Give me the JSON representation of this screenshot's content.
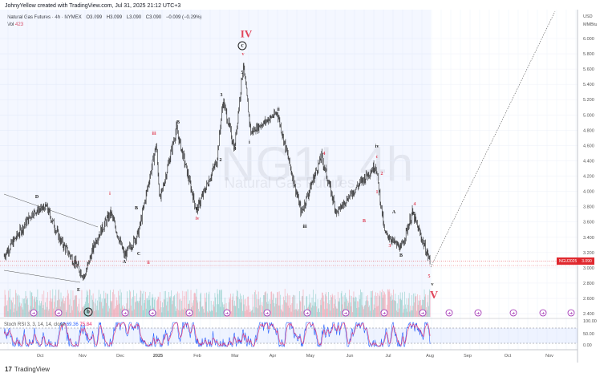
{
  "header": {
    "credit": "JohnyYellow created with TradingView.com, Jul 31, 2025 21:12 UTC+3"
  },
  "symbol": {
    "name": "Natural Gas Futures · 4h · NYMEX",
    "open": "O3.099",
    "high": "H3.099",
    "low": "L3.090",
    "close": "C3.090",
    "change": "−0.009 (−0.29%)",
    "vol_label": "Vol",
    "vol_value": "423"
  },
  "watermark": {
    "ticker": "NG1!, 4h",
    "name": "Natural Gas Futures"
  },
  "axis": {
    "currency": "USD",
    "unit": "MMBtu"
  },
  "price_tag": {
    "symbol": "NGU2025",
    "price": "3.090"
  },
  "stoch": {
    "label": "Stoch RSI 3, 3, 14, 14, close",
    "k": "69.36",
    "d": "75.84",
    "ticks": [
      "100.00",
      "50.00",
      "0.00"
    ]
  },
  "footer": {
    "brand": "TradingView"
  },
  "colors": {
    "up": "#089981",
    "down": "#f23645",
    "wave": "#e0455a",
    "k": "#2962ff",
    "d": "#e91e63"
  },
  "wave_labels": [
    {
      "t": "IV",
      "c": "red big"
    },
    {
      "t": "c",
      "c": "circ"
    },
    {
      "t": "v",
      "c": "red"
    },
    {
      "t": "5",
      "c": ""
    },
    {
      "t": "3",
      "c": ""
    },
    {
      "t": "4",
      "c": ""
    },
    {
      "t": "2",
      "c": ""
    },
    {
      "t": "ii",
      "c": ""
    },
    {
      "t": "i",
      "c": ""
    },
    {
      "t": "iii",
      "c": "red"
    },
    {
      "t": "B",
      "c": ""
    },
    {
      "t": "B",
      "c": ""
    },
    {
      "t": "iv",
      "c": "red"
    },
    {
      "t": "C",
      "c": ""
    },
    {
      "t": "i",
      "c": "red"
    },
    {
      "t": "D",
      "c": ""
    },
    {
      "t": "A",
      "c": ""
    },
    {
      "t": "C",
      "c": ""
    },
    {
      "t": "ii",
      "c": "red"
    },
    {
      "t": "E",
      "c": ""
    },
    {
      "t": "b",
      "c": "circ"
    },
    {
      "t": "4",
      "c": "red"
    },
    {
      "t": "iii",
      "c": ""
    },
    {
      "t": "B",
      "c": "red"
    },
    {
      "t": "iv",
      "c": ""
    },
    {
      "t": "c",
      "c": "red"
    },
    {
      "t": "2",
      "c": "red"
    },
    {
      "t": "1",
      "c": "red"
    },
    {
      "t": "A",
      "c": ""
    },
    {
      "t": "4",
      "c": "red"
    },
    {
      "t": "C",
      "c": ""
    },
    {
      "t": "3",
      "c": "red"
    },
    {
      "t": "B",
      "c": ""
    },
    {
      "t": "5",
      "c": "red"
    },
    {
      "t": "v",
      "c": ""
    },
    {
      "t": "V",
      "c": "red huge"
    }
  ],
  "chart_data": {
    "type": "candlestick",
    "title": "Natural Gas Futures · 4h · NYMEX",
    "ylabel": "USD/MMBtu",
    "ylim": [
      2.3,
      6.1
    ],
    "yticks": [
      "6.000",
      "5.800",
      "5.600",
      "5.400",
      "5.200",
      "5.000",
      "4.800",
      "4.600",
      "4.400",
      "4.200",
      "4.000",
      "3.800",
      "3.600",
      "3.400",
      "3.200",
      "3.000",
      "2.800",
      "2.600",
      "2.400"
    ],
    "xticks": [
      "Oct",
      "Nov",
      "Dec",
      "2025",
      "Feb",
      "Mar",
      "Apr",
      "May",
      "Jun",
      "Jul",
      "Aug",
      "Sep",
      "Oct",
      "Nov"
    ],
    "path_days_from_2024_10_01": [
      [
        -29,
        3.15
      ],
      [
        -6,
        3.72
      ],
      [
        5,
        3.8
      ],
      [
        16,
        3.36
      ],
      [
        35,
        2.88
      ],
      [
        44,
        3.36
      ],
      [
        56,
        3.72
      ],
      [
        67,
        3.15
      ],
      [
        78,
        3.46
      ],
      [
        92,
        4.61
      ],
      [
        95,
        3.88
      ],
      [
        108,
        4.82
      ],
      [
        124,
        3.75
      ],
      [
        140,
        4.4
      ],
      [
        145,
        5.19
      ],
      [
        154,
        4.56
      ],
      [
        161,
        5.66
      ],
      [
        167,
        4.77
      ],
      [
        188,
        5.03
      ],
      [
        207,
        3.72
      ],
      [
        223,
        4.46
      ],
      [
        235,
        3.72
      ],
      [
        247,
        3.98
      ],
      [
        266,
        4.35
      ],
      [
        273,
        3.46
      ],
      [
        286,
        3.25
      ],
      [
        295,
        3.72
      ],
      [
        309,
        3.09
      ]
    ],
    "last_close": 3.09
  }
}
